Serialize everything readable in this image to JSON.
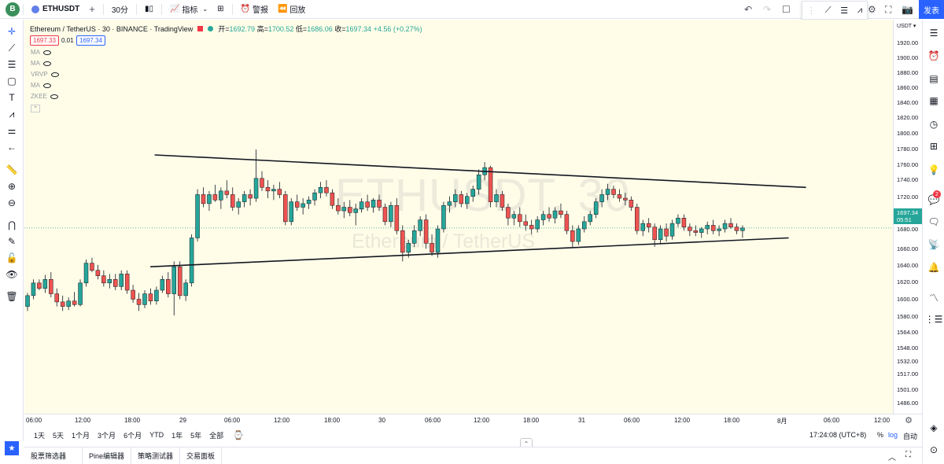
{
  "topbar": {
    "avatar_letter": "B",
    "symbol": "ETHUSDT",
    "add_symbol": "+",
    "interval": "30分",
    "indicators_label": "指标",
    "alert_label": "警报",
    "replay_label": "回放",
    "publish_label": "发表"
  },
  "legend": {
    "title": "Ethereum / TetherUS · 30 · BINANCE · TradingView",
    "open_label": "开=",
    "open": "1692.79",
    "high_label": "高=",
    "high": "1700.52",
    "low_label": "低=",
    "low": "1686.06",
    "close_label": "收=",
    "close": "1697.34",
    "change": "+4.56 (+0.27%)",
    "sell_price": "1697.33",
    "spread": "0.01",
    "buy_price": "1697.34"
  },
  "indicators": [
    "MA",
    "MA",
    "VRVP",
    "MA",
    "ZKEE"
  ],
  "watermark": {
    "symbol": "ETHUSDT, 30",
    "name": "Ethereum / TetherUS"
  },
  "price_axis": {
    "currency": "USDT",
    "ticks": [
      "1920.00",
      "1900.00",
      "1880.00",
      "1860.00",
      "1840.00",
      "1820.00",
      "1800.00",
      "1780.00",
      "1760.00",
      "1740.00",
      "1720.00",
      "1680.00",
      "1660.00",
      "1640.00",
      "1620.00",
      "1600.00",
      "1580.00",
      "1564.00",
      "1548.00",
      "1532.00",
      "1517.00",
      "1501.00",
      "1486.00"
    ],
    "current_price": "1697.34",
    "countdown": "05:51"
  },
  "time_axis": {
    "ticks": [
      "06:00",
      "12:00",
      "18:00",
      "29",
      "06:00",
      "12:00",
      "18:00",
      "30",
      "06:00",
      "12:00",
      "18:00",
      "31",
      "06:00",
      "12:00",
      "18:00",
      "8月",
      "06:00",
      "12:00"
    ]
  },
  "range_bar": {
    "ranges": [
      "1天",
      "5天",
      "1个月",
      "3个月",
      "6个月",
      "YTD",
      "1年",
      "5年",
      "全部"
    ],
    "clock": "17:24:08 (UTC+8)",
    "percent": "%",
    "log": "log",
    "auto": "自动"
  },
  "bottom_tabs": [
    "股票筛选器",
    "Pine编辑器",
    "策略测试器",
    "交易面板"
  ],
  "right_badge": "2",
  "colors": {
    "up": "#26a69a",
    "down": "#ef5350",
    "bg": "#fffde8",
    "accent": "#2962ff"
  },
  "chart_data": {
    "type": "candlestick",
    "title": "",
    "xlabel": "",
    "ylabel": "",
    "ylim": [
      1478,
      1928
    ],
    "candles": [
      [
        1610,
        1625,
        1605,
        1622
      ],
      [
        1622,
        1640,
        1618,
        1636
      ],
      [
        1636,
        1640,
        1628,
        1630
      ],
      [
        1630,
        1645,
        1625,
        1640
      ],
      [
        1640,
        1648,
        1620,
        1624
      ],
      [
        1624,
        1630,
        1610,
        1615
      ],
      [
        1615,
        1622,
        1605,
        1610
      ],
      [
        1610,
        1620,
        1606,
        1616
      ],
      [
        1616,
        1626,
        1610,
        1612
      ],
      [
        1612,
        1640,
        1610,
        1636
      ],
      [
        1636,
        1662,
        1632,
        1658
      ],
      [
        1658,
        1664,
        1648,
        1650
      ],
      [
        1650,
        1656,
        1640,
        1644
      ],
      [
        1644,
        1650,
        1632,
        1636
      ],
      [
        1636,
        1646,
        1630,
        1640
      ],
      [
        1640,
        1646,
        1628,
        1632
      ],
      [
        1632,
        1650,
        1628,
        1646
      ],
      [
        1646,
        1650,
        1624,
        1628
      ],
      [
        1628,
        1634,
        1614,
        1618
      ],
      [
        1618,
        1625,
        1605,
        1612
      ],
      [
        1612,
        1628,
        1608,
        1624
      ],
      [
        1624,
        1630,
        1612,
        1616
      ],
      [
        1616,
        1632,
        1612,
        1628
      ],
      [
        1628,
        1644,
        1625,
        1640
      ],
      [
        1640,
        1648,
        1620,
        1624
      ],
      [
        1624,
        1660,
        1600,
        1654
      ],
      [
        1654,
        1660,
        1618,
        1622
      ],
      [
        1622,
        1640,
        1616,
        1636
      ],
      [
        1636,
        1690,
        1632,
        1686
      ],
      [
        1686,
        1740,
        1682,
        1734
      ],
      [
        1734,
        1742,
        1720,
        1724
      ],
      [
        1724,
        1738,
        1716,
        1734
      ],
      [
        1734,
        1745,
        1726,
        1728
      ],
      [
        1728,
        1742,
        1718,
        1738
      ],
      [
        1738,
        1750,
        1730,
        1734
      ],
      [
        1734,
        1742,
        1716,
        1720
      ],
      [
        1720,
        1730,
        1712,
        1726
      ],
      [
        1726,
        1738,
        1720,
        1734
      ],
      [
        1734,
        1740,
        1722,
        1730
      ],
      [
        1730,
        1784,
        1726,
        1752
      ],
      [
        1752,
        1760,
        1738,
        1742
      ],
      [
        1742,
        1750,
        1730,
        1738
      ],
      [
        1738,
        1745,
        1728,
        1740
      ],
      [
        1740,
        1748,
        1730,
        1734
      ],
      [
        1734,
        1738,
        1700,
        1704
      ],
      [
        1704,
        1730,
        1700,
        1726
      ],
      [
        1726,
        1734,
        1716,
        1720
      ],
      [
        1720,
        1730,
        1712,
        1724
      ],
      [
        1724,
        1732,
        1718,
        1728
      ],
      [
        1728,
        1740,
        1722,
        1736
      ],
      [
        1736,
        1748,
        1730,
        1742
      ],
      [
        1742,
        1750,
        1732,
        1736
      ],
      [
        1736,
        1740,
        1718,
        1722
      ],
      [
        1722,
        1730,
        1712,
        1716
      ],
      [
        1716,
        1726,
        1708,
        1720
      ],
      [
        1720,
        1728,
        1710,
        1714
      ],
      [
        1714,
        1724,
        1700,
        1718
      ],
      [
        1718,
        1730,
        1714,
        1726
      ],
      [
        1726,
        1734,
        1716,
        1720
      ],
      [
        1720,
        1730,
        1714,
        1728
      ],
      [
        1728,
        1734,
        1716,
        1720
      ],
      [
        1720,
        1724,
        1700,
        1704
      ],
      [
        1704,
        1726,
        1698,
        1722
      ],
      [
        1722,
        1730,
        1690,
        1694
      ],
      [
        1694,
        1700,
        1660,
        1670
      ],
      [
        1670,
        1684,
        1664,
        1680
      ],
      [
        1680,
        1700,
        1676,
        1694
      ],
      [
        1694,
        1710,
        1688,
        1706
      ],
      [
        1706,
        1712,
        1674,
        1680
      ],
      [
        1680,
        1690,
        1666,
        1670
      ],
      [
        1670,
        1700,
        1664,
        1696
      ],
      [
        1696,
        1726,
        1692,
        1722
      ],
      [
        1722,
        1732,
        1714,
        1726
      ],
      [
        1726,
        1740,
        1720,
        1734
      ],
      [
        1734,
        1738,
        1720,
        1724
      ],
      [
        1724,
        1736,
        1718,
        1732
      ],
      [
        1732,
        1744,
        1726,
        1740
      ],
      [
        1740,
        1762,
        1734,
        1756
      ],
      [
        1756,
        1770,
        1750,
        1764
      ],
      [
        1764,
        1766,
        1720,
        1726
      ],
      [
        1726,
        1740,
        1720,
        1734
      ],
      [
        1734,
        1738,
        1716,
        1720
      ],
      [
        1720,
        1724,
        1700,
        1708
      ],
      [
        1708,
        1716,
        1700,
        1712
      ],
      [
        1712,
        1720,
        1698,
        1704
      ],
      [
        1704,
        1712,
        1694,
        1700
      ],
      [
        1700,
        1706,
        1690,
        1696
      ],
      [
        1696,
        1710,
        1692,
        1706
      ],
      [
        1706,
        1716,
        1700,
        1712
      ],
      [
        1712,
        1720,
        1704,
        1708
      ],
      [
        1708,
        1720,
        1702,
        1716
      ],
      [
        1716,
        1724,
        1708,
        1712
      ],
      [
        1712,
        1716,
        1690,
        1694
      ],
      [
        1694,
        1700,
        1676,
        1682
      ],
      [
        1682,
        1700,
        1678,
        1696
      ],
      [
        1696,
        1710,
        1692,
        1704
      ],
      [
        1704,
        1716,
        1700,
        1712
      ],
      [
        1712,
        1730,
        1708,
        1726
      ],
      [
        1726,
        1740,
        1720,
        1734
      ],
      [
        1734,
        1746,
        1728,
        1740
      ],
      [
        1740,
        1744,
        1730,
        1734
      ],
      [
        1734,
        1740,
        1726,
        1730
      ],
      [
        1730,
        1736,
        1722,
        1728
      ],
      [
        1728,
        1732,
        1716,
        1720
      ],
      [
        1720,
        1724,
        1690,
        1694
      ],
      [
        1694,
        1706,
        1688,
        1702
      ],
      [
        1702,
        1708,
        1692,
        1698
      ],
      [
        1698,
        1702,
        1676,
        1684
      ],
      [
        1684,
        1700,
        1680,
        1696
      ],
      [
        1696,
        1702,
        1682,
        1688
      ],
      [
        1688,
        1706,
        1684,
        1702
      ],
      [
        1702,
        1712,
        1698,
        1708
      ],
      [
        1708,
        1712,
        1694,
        1698
      ],
      [
        1698,
        1702,
        1688,
        1694
      ],
      [
        1694,
        1700,
        1688,
        1692
      ],
      [
        1692,
        1698,
        1686,
        1696
      ],
      [
        1696,
        1704,
        1690,
        1700
      ],
      [
        1700,
        1706,
        1690,
        1694
      ],
      [
        1694,
        1700,
        1688,
        1696
      ],
      [
        1696,
        1706,
        1692,
        1702
      ],
      [
        1702,
        1708,
        1696,
        1698
      ],
      [
        1698,
        1702,
        1690,
        1694
      ],
      [
        1694,
        1700,
        1686,
        1697
      ]
    ],
    "trendlines": [
      {
        "name": "resistance",
        "from": [
          0.15,
          1778
        ],
        "to": [
          0.9,
          1742
        ]
      },
      {
        "name": "support",
        "from": [
          0.145,
          1654
        ],
        "to": [
          0.88,
          1686
        ]
      }
    ]
  }
}
